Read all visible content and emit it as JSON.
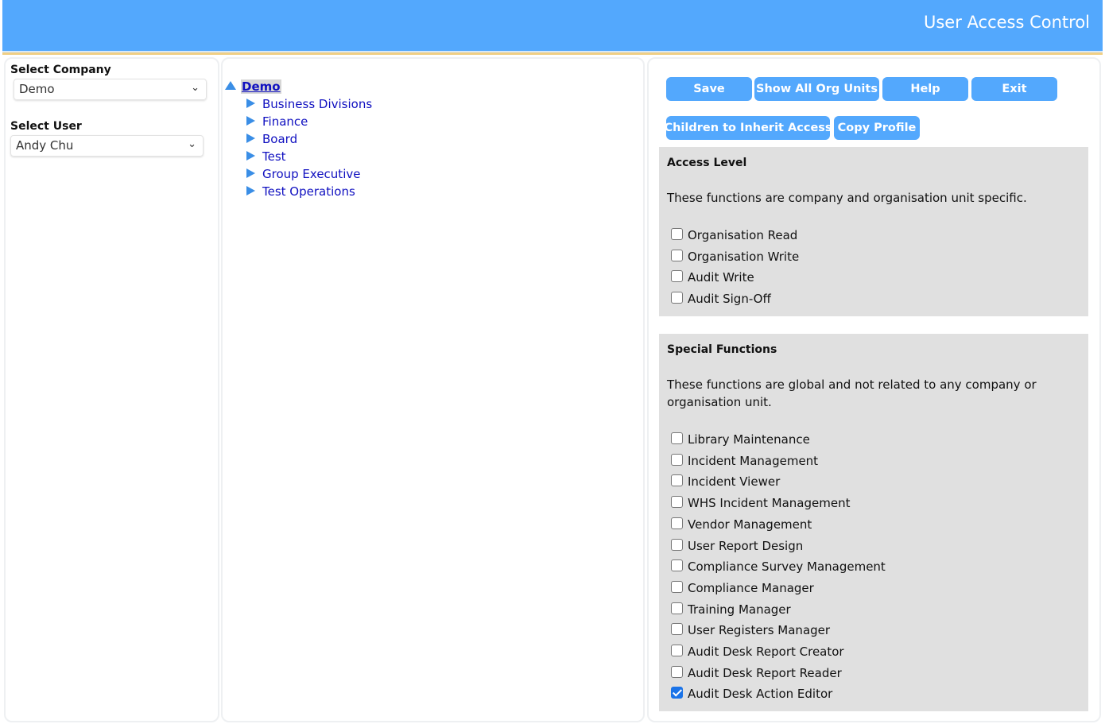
{
  "header": {
    "title": "User Access Control",
    "color": "#53a8fd"
  },
  "left": {
    "company_label": "Select Company",
    "company_value": "Demo",
    "user_label": "Select User",
    "user_value": "Andy Chu"
  },
  "tree": {
    "root": "Demo",
    "children": [
      "Business Divisions",
      "Finance",
      "Board",
      "Test",
      "Group Executive",
      "Test Operations"
    ]
  },
  "toolbar": {
    "save": "Save",
    "show_all": "Show All Org Units",
    "help": "Help",
    "exit": "Exit",
    "inherit": "Children to Inherit Access",
    "copy": "Copy Profile"
  },
  "access_level": {
    "title": "Access Level",
    "description": "These functions are company and organisation unit specific.",
    "items": [
      {
        "label": "Organisation Read",
        "checked": false
      },
      {
        "label": "Organisation Write",
        "checked": false
      },
      {
        "label": "Audit Write",
        "checked": false
      },
      {
        "label": "Audit Sign-Off",
        "checked": false
      }
    ]
  },
  "special": {
    "title": "Special Functions",
    "description": "These functions are global and not related to any company or organisation unit.",
    "items": [
      {
        "label": "Library Maintenance",
        "checked": false
      },
      {
        "label": "Incident Management",
        "checked": false
      },
      {
        "label": "Incident Viewer",
        "checked": false
      },
      {
        "label": "WHS Incident Management",
        "checked": false
      },
      {
        "label": "Vendor Management",
        "checked": false
      },
      {
        "label": "User Report Design",
        "checked": false
      },
      {
        "label": "Compliance Survey Management",
        "checked": false
      },
      {
        "label": "Compliance Manager",
        "checked": false
      },
      {
        "label": "Training Manager",
        "checked": false
      },
      {
        "label": "User Registers Manager",
        "checked": false
      },
      {
        "label": "Audit Desk Report Creator",
        "checked": false
      },
      {
        "label": "Audit Desk Report Reader",
        "checked": false
      },
      {
        "label": "Audit Desk Action Editor",
        "checked": true
      }
    ]
  }
}
